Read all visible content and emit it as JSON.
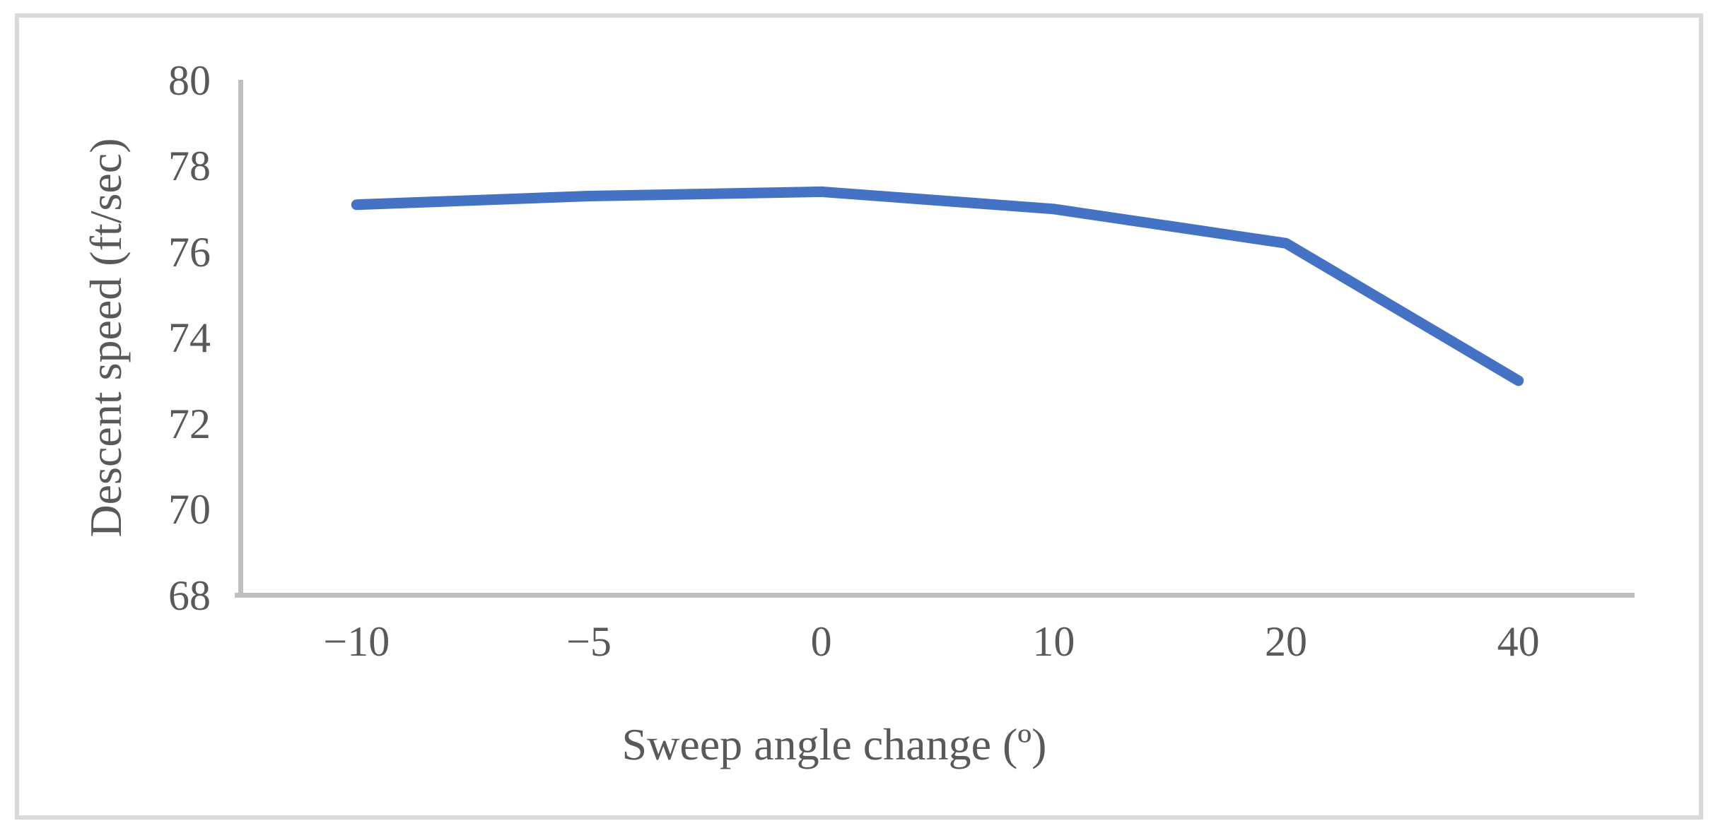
{
  "chart_data": {
    "type": "line",
    "title": "",
    "xlabel": "Sweep angle change (º)",
    "ylabel": "Descent speed (ft/sec)",
    "categories": [
      "−10",
      "−5",
      "0",
      "10",
      "20",
      "40"
    ],
    "series": [
      {
        "name": "Descent speed",
        "values": [
          77.1,
          77.3,
          77.4,
          77.0,
          76.2,
          73.0
        ]
      }
    ],
    "yticks": [
      80,
      78,
      76,
      74,
      72,
      70,
      68
    ],
    "ylim": [
      68,
      80
    ],
    "grid": false,
    "legend": false,
    "line_color": "#4472C4",
    "axis_color": "#BFBFBF",
    "frame_color": "#D9D9D9",
    "text_color": "#595959"
  }
}
